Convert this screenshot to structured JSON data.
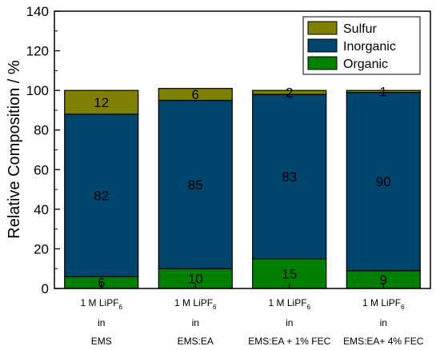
{
  "chart_data": {
    "type": "bar",
    "stacked": true,
    "categories": [
      {
        "line1_main": "1 M LiPF",
        "line1_sub": "6",
        "line2": "in",
        "line3": "EMS"
      },
      {
        "line1_main": "1 M LiPF",
        "line1_sub": "6",
        "line2": "in",
        "line3": "EMS:EA"
      },
      {
        "line1_main": "1 M LiPF",
        "line1_sub": "6",
        "line2": "in",
        "line3": "EMS:EA + 1% FEC"
      },
      {
        "line1_main": "1 M LiPF",
        "line1_sub": "6",
        "line2": "in",
        "line3": "EMS:EA+ 4% FEC"
      }
    ],
    "series": [
      {
        "name": "Organic",
        "color": "#008000",
        "values": [
          6,
          10,
          15,
          9
        ],
        "labels": [
          "6",
          "10",
          "15",
          "9"
        ]
      },
      {
        "name": "Inorganic",
        "color": "#00456b",
        "values": [
          82,
          85,
          83,
          90
        ],
        "labels": [
          "82",
          "85",
          "83",
          "90"
        ]
      },
      {
        "name": "Sulfur",
        "color": "#808000",
        "values": [
          12,
          6,
          2,
          1
        ],
        "labels": [
          "12",
          "6",
          "2",
          "1"
        ]
      }
    ],
    "ylabel": "Relative Composition / %",
    "xlabel": "",
    "ylim": [
      0,
      140
    ],
    "yticks": [
      0,
      20,
      40,
      60,
      80,
      100,
      120,
      140
    ],
    "legend": {
      "placement": "top-right",
      "order": [
        "Sulfur",
        "Inorganic",
        "Organic"
      ]
    },
    "grid": false
  }
}
